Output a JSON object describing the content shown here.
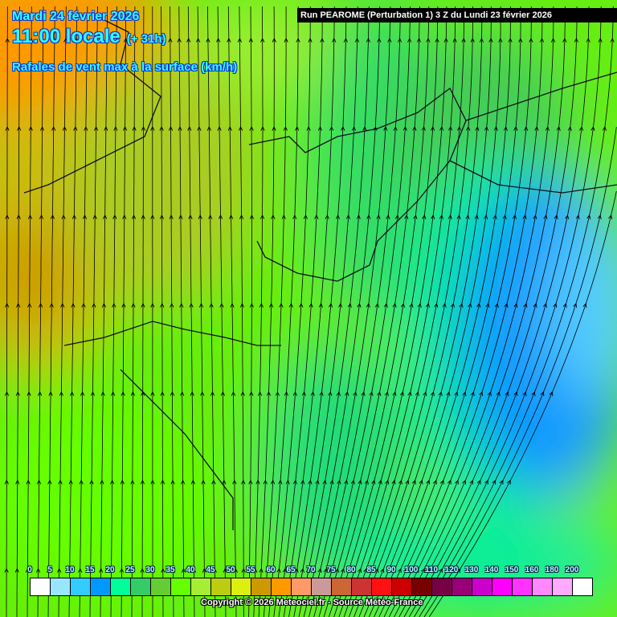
{
  "header": {
    "date": "Mardi 24 février 2026",
    "time": "11:00 locale",
    "lead": "(+ 31h)",
    "parameter": "Rafales de vent max à la surface (km/h)",
    "run": "Run PEAROME (Perturbation 1) 3 Z du Lundi 23 février 2026"
  },
  "legend": {
    "labels": [
      "0",
      "5",
      "10",
      "15",
      "20",
      "25",
      "30",
      "35",
      "40",
      "45",
      "50",
      "55",
      "60",
      "65",
      "70",
      "75",
      "80",
      "85",
      "90",
      "100",
      "110",
      "120",
      "130",
      "140",
      "150",
      "160",
      "180",
      "200"
    ],
    "colors": [
      "#ffffff",
      "#99e6ff",
      "#33ccff",
      "#0099ff",
      "#00ff99",
      "#33cc66",
      "#66cc33",
      "#66ff00",
      "#a6ee33",
      "#bbcc11",
      "#ddee11",
      "#cc9900",
      "#ff9900",
      "#ff9966",
      "#cc9999",
      "#cc6633",
      "#cc3333",
      "#ff1111",
      "#cc0000",
      "#770000",
      "#770044",
      "#990077",
      "#cc00cc",
      "#ff00ff",
      "#ff33ff",
      "#ff88ff",
      "#ffaaff",
      "#ffffff"
    ]
  },
  "copyright": "Copyright © 2026 Meteociel.fr - Source Météo-France"
}
